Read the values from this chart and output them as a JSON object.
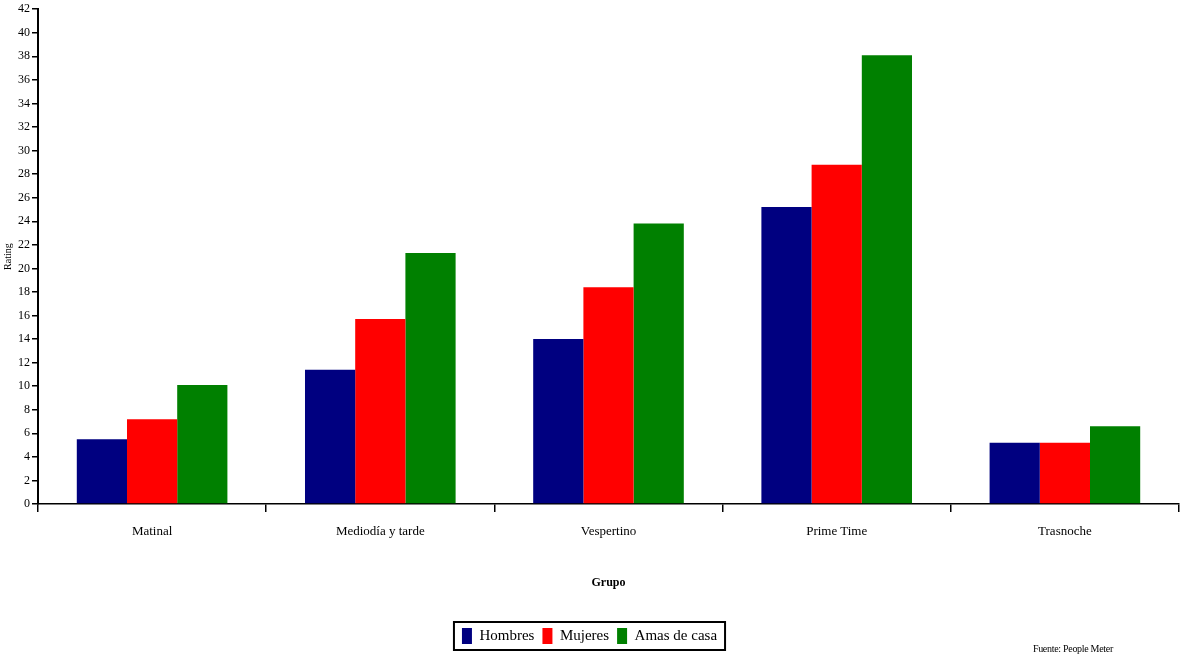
{
  "chart_data": {
    "type": "bar",
    "xlabel": "Grupo",
    "ylabel": "Rating",
    "categories": [
      "Matinal",
      "Mediodía y tarde",
      "Vespertino",
      "Prime Time",
      "Trasnoche"
    ],
    "series": [
      {
        "name": "Hombres",
        "color": "#000080",
        "values": [
          5.5,
          11.4,
          14.0,
          25.2,
          5.2
        ]
      },
      {
        "name": "Mujeres",
        "color": "#ff0000",
        "values": [
          7.2,
          15.7,
          18.4,
          28.8,
          5.2
        ]
      },
      {
        "name": "Amas de casa",
        "color": "#008000",
        "values": [
          10.1,
          21.3,
          23.8,
          38.1,
          6.6
        ]
      }
    ],
    "ylim": [
      0,
      42
    ],
    "yticks": [
      0,
      2,
      4,
      6,
      8,
      10,
      12,
      14,
      16,
      18,
      20,
      22,
      24,
      26,
      28,
      30,
      32,
      34,
      36,
      38,
      40,
      42
    ],
    "grid": false,
    "legend": "bottom",
    "annotations": [
      "Fuente: People Meter"
    ]
  }
}
